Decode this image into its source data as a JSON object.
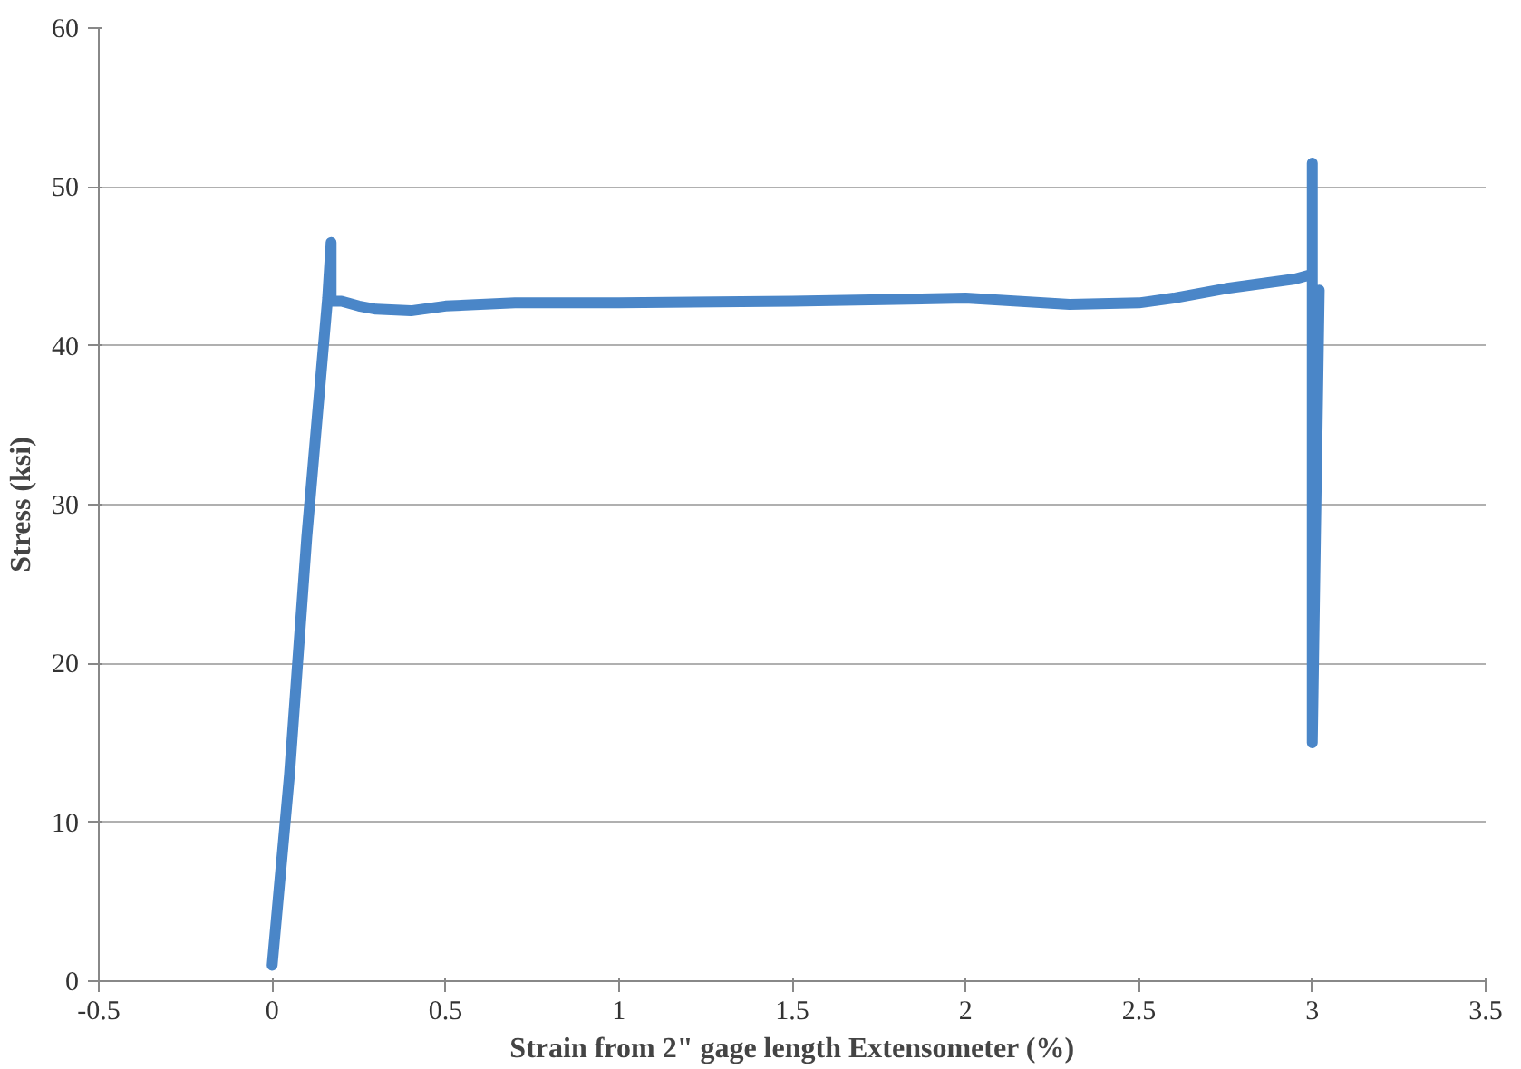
{
  "chart_data": {
    "type": "line",
    "xlabel": "Strain from 2\" gage length Extensometer (%)",
    "ylabel": "Stress (ksi)",
    "xlim": [
      -0.5,
      3.5
    ],
    "xticks": [
      -0.5,
      0,
      0.5,
      1,
      1.5,
      2,
      2.5,
      3,
      3.5
    ],
    "ylim": [
      0,
      60
    ],
    "yticks": [
      0,
      10,
      20,
      30,
      40,
      50,
      60
    ],
    "grid": "y",
    "marker": "none",
    "line_style": "solid",
    "series": [
      {
        "color": "#4a86c8",
        "x": [
          0,
          0.05,
          0.1,
          0.16,
          0.17,
          0.17,
          0.2,
          0.25,
          0.3,
          0.4,
          0.5,
          0.7,
          1,
          1.5,
          2,
          2.3,
          2.5,
          2.6,
          2.75,
          2.95,
          3,
          3,
          3,
          3.02
        ],
        "values": [
          1,
          13,
          28,
          43,
          46.5,
          42.8,
          42.8,
          42.5,
          42.3,
          42.2,
          42.5,
          42.7,
          42.7,
          42.8,
          43,
          42.6,
          42.7,
          43,
          43.6,
          44.2,
          44.5,
          51.5,
          15,
          43.5
        ]
      }
    ]
  }
}
